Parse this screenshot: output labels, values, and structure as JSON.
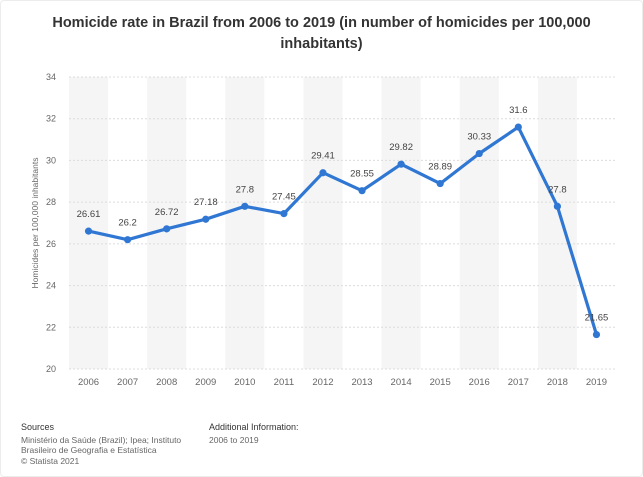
{
  "chart_data": {
    "type": "line",
    "title": "Homicide rate in Brazil from 2006 to 2019 (in number of homicides per 100,000 inhabitants)",
    "xlabel": "",
    "ylabel": "Homicides per 100,000 inhabitants",
    "categories": [
      "2006",
      "2007",
      "2008",
      "2009",
      "2010",
      "2011",
      "2012",
      "2013",
      "2014",
      "2015",
      "2016",
      "2017",
      "2018",
      "2019"
    ],
    "series": [
      {
        "name": "Homicide rate",
        "values": [
          26.61,
          26.2,
          26.72,
          27.18,
          27.8,
          27.45,
          29.41,
          28.55,
          29.82,
          28.89,
          30.33,
          31.6,
          27.8,
          21.65
        ],
        "labels": [
          "26.61",
          "26.2",
          "26.72",
          "27.18",
          "27.8",
          "27.45",
          "29.41",
          "28.55",
          "29.82",
          "28.89",
          "30.33",
          "31.6",
          "27.8",
          "21.65"
        ]
      }
    ],
    "ylim": [
      20,
      34
    ],
    "yticks": [
      "20",
      "22",
      "24",
      "26",
      "28",
      "30",
      "32",
      "34"
    ],
    "grid": true,
    "legend": "none"
  },
  "sources": {
    "heading": "Sources",
    "line1": "Ministério da Saúde (Brazil); Ipea; Instituto",
    "line2": "Brasileiro de Geografia e Estatística",
    "line3": "© Statista 2021"
  },
  "additional": {
    "heading": "Additional Information:",
    "text": "2006 to 2019"
  },
  "colors": {
    "line": "#2f77d3",
    "band": "#f5f5f5",
    "grid": "#dcdcdc",
    "label": "#444444",
    "axis_text": "#666666"
  }
}
